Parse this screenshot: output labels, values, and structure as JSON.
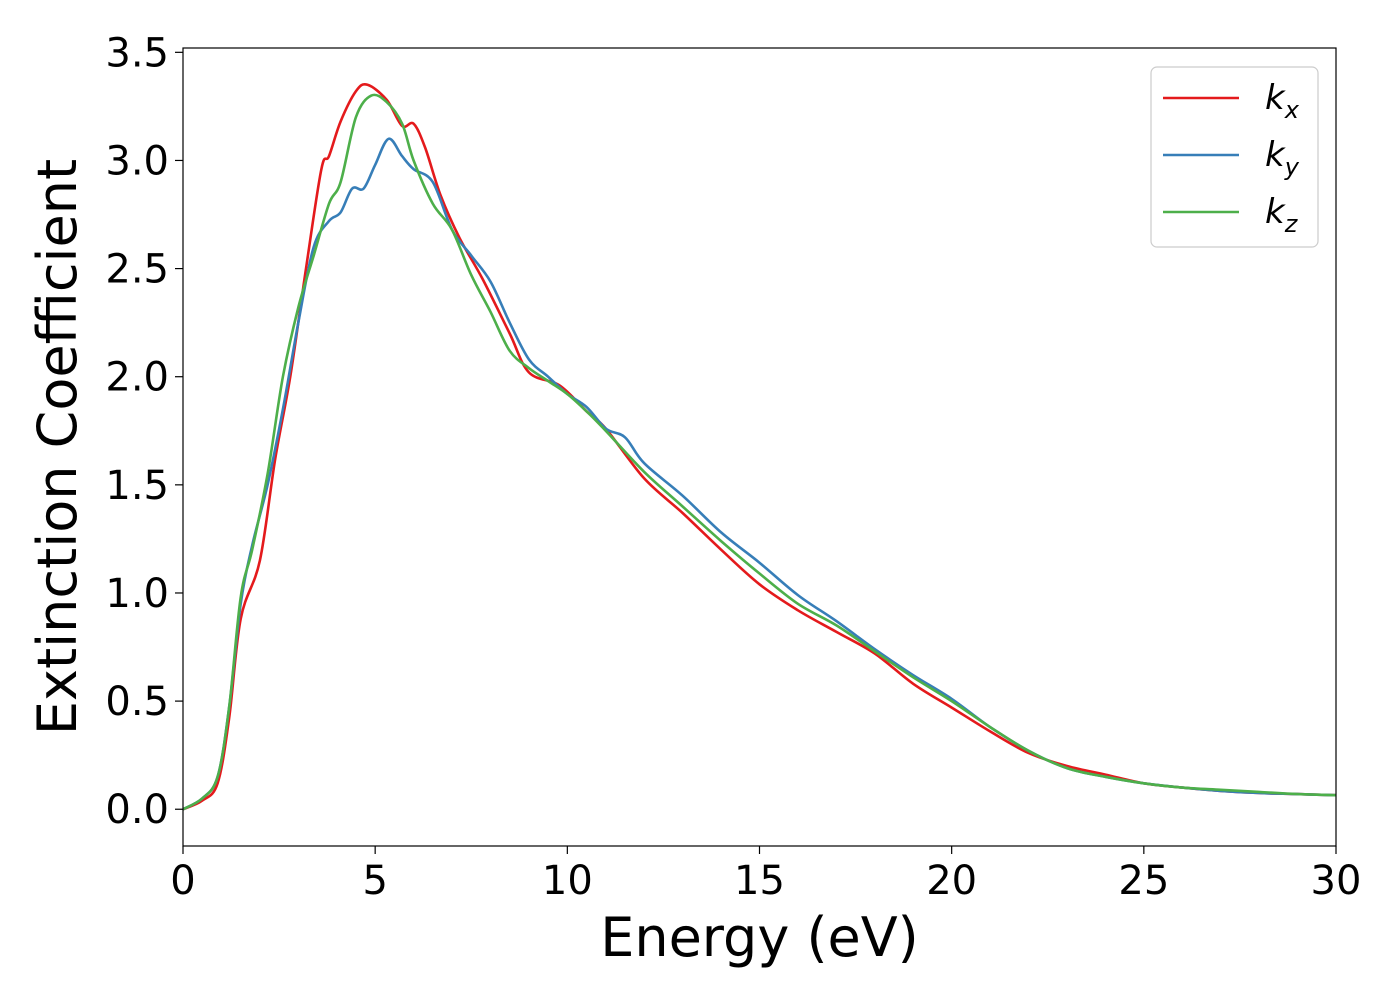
{
  "chart_data": {
    "type": "line",
    "title": "",
    "xlabel": "Energy (eV)",
    "ylabel": "Extinction Coefficient",
    "xlim": [
      0,
      30
    ],
    "ylim": [
      -0.17,
      3.52
    ],
    "xticks": [
      0,
      5,
      10,
      15,
      20,
      25,
      30
    ],
    "xtick_labels": [
      "0",
      "5",
      "10",
      "15",
      "20",
      "25",
      "30"
    ],
    "yticks": [
      0.0,
      0.5,
      1.0,
      1.5,
      2.0,
      2.5,
      3.0,
      3.5
    ],
    "ytick_labels": [
      "0.0",
      "0.5",
      "1.0",
      "1.5",
      "2.0",
      "2.5",
      "3.0",
      "3.5"
    ],
    "grid": false,
    "legend_position": "top-right",
    "series": [
      {
        "name": "k",
        "subscript": "x",
        "color": "#e41a1c",
        "x": [
          0,
          0.5,
          0.9,
          1.2,
          1.5,
          2.0,
          2.4,
          2.8,
          3.2,
          3.6,
          3.8,
          4.1,
          4.5,
          4.8,
          5.3,
          5.7,
          6.0,
          6.3,
          6.7,
          7.2,
          7.8,
          8.5,
          9.0,
          9.8,
          10.5,
          11.0,
          12.0,
          13.0,
          14.0,
          15.0,
          16.0,
          17.0,
          18.0,
          19.0,
          20.0,
          21.0,
          22.0,
          23.0,
          24.0,
          25.0,
          26.0,
          27.0,
          28.0,
          29.0,
          30.0
        ],
        "y": [
          0.0,
          0.04,
          0.12,
          0.42,
          0.88,
          1.15,
          1.62,
          2.01,
          2.5,
          2.96,
          3.02,
          3.18,
          3.32,
          3.35,
          3.28,
          3.16,
          3.17,
          3.06,
          2.84,
          2.64,
          2.45,
          2.2,
          2.02,
          1.96,
          1.84,
          1.76,
          1.53,
          1.37,
          1.2,
          1.04,
          0.92,
          0.82,
          0.72,
          0.58,
          0.47,
          0.36,
          0.26,
          0.2,
          0.16,
          0.12,
          0.1,
          0.085,
          0.075,
          0.07,
          0.065
        ]
      },
      {
        "name": "k",
        "subscript": "y",
        "color": "#377eb8",
        "x": [
          0,
          0.5,
          0.9,
          1.2,
          1.5,
          1.8,
          2.2,
          2.6,
          3.0,
          3.4,
          3.8,
          4.1,
          4.4,
          4.7,
          5.0,
          5.35,
          5.7,
          6.0,
          6.5,
          7.0,
          7.5,
          8.0,
          8.5,
          9.0,
          9.5,
          10.0,
          10.5,
          11.0,
          11.5,
          12.0,
          13.0,
          14.0,
          15.0,
          16.0,
          17.0,
          18.0,
          19.0,
          20.0,
          21.0,
          22.0,
          23.0,
          24.0,
          25.0,
          26.0,
          27.0,
          28.0,
          29.0,
          30.0
        ],
        "y": [
          0.0,
          0.05,
          0.15,
          0.47,
          0.95,
          1.22,
          1.5,
          1.85,
          2.25,
          2.6,
          2.72,
          2.76,
          2.87,
          2.87,
          2.98,
          3.1,
          3.02,
          2.96,
          2.9,
          2.68,
          2.56,
          2.44,
          2.25,
          2.08,
          2.0,
          1.92,
          1.86,
          1.76,
          1.72,
          1.6,
          1.45,
          1.28,
          1.14,
          0.99,
          0.87,
          0.74,
          0.62,
          0.51,
          0.38,
          0.27,
          0.19,
          0.15,
          0.12,
          0.1,
          0.085,
          0.075,
          0.07,
          0.065
        ]
      },
      {
        "name": "k",
        "subscript": "z",
        "color": "#4daf4a",
        "x": [
          0,
          0.5,
          0.9,
          1.2,
          1.5,
          1.8,
          2.2,
          2.6,
          3.0,
          3.4,
          3.8,
          4.1,
          4.5,
          4.9,
          5.3,
          5.7,
          6.0,
          6.5,
          7.0,
          7.5,
          8.0,
          8.5,
          9.0,
          9.5,
          10.0,
          10.5,
          11.0,
          12.0,
          13.0,
          14.0,
          15.0,
          16.0,
          17.0,
          18.0,
          19.0,
          20.0,
          21.0,
          22.0,
          23.0,
          24.0,
          25.0,
          26.0,
          27.0,
          28.0,
          29.0,
          30.0
        ],
        "y": [
          0.0,
          0.05,
          0.15,
          0.47,
          0.98,
          1.2,
          1.55,
          2.0,
          2.32,
          2.56,
          2.8,
          2.9,
          3.2,
          3.3,
          3.27,
          3.17,
          3.0,
          2.8,
          2.68,
          2.47,
          2.3,
          2.12,
          2.04,
          1.98,
          1.92,
          1.84,
          1.75,
          1.56,
          1.4,
          1.24,
          1.09,
          0.95,
          0.85,
          0.73,
          0.61,
          0.5,
          0.38,
          0.27,
          0.19,
          0.15,
          0.12,
          0.1,
          0.09,
          0.08,
          0.07,
          0.065
        ]
      }
    ]
  }
}
